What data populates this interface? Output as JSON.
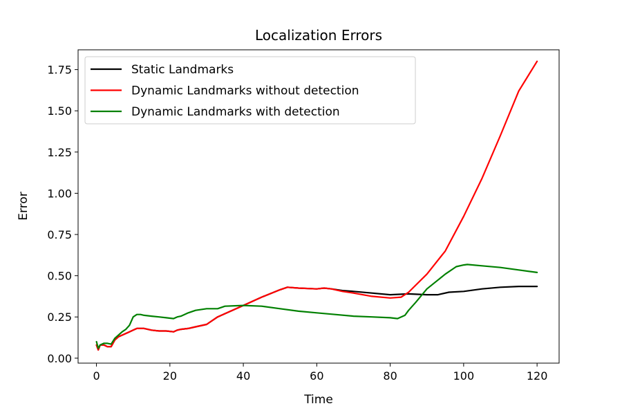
{
  "chart_data": {
    "type": "line",
    "title": "Localization Errors",
    "xlabel": "Time",
    "ylabel": "Error",
    "xlim": [
      -5,
      126
    ],
    "ylim": [
      -0.03,
      1.87
    ],
    "xticks": [
      0,
      20,
      40,
      60,
      80,
      100,
      120
    ],
    "xtick_labels": [
      "0",
      "20",
      "40",
      "60",
      "80",
      "100",
      "120"
    ],
    "yticks": [
      0.0,
      0.25,
      0.5,
      0.75,
      1.0,
      1.25,
      1.5,
      1.75
    ],
    "ytick_labels": [
      "0.00",
      "0.25",
      "0.50",
      "0.75",
      "1.00",
      "1.25",
      "1.50",
      "1.75"
    ],
    "grid": false,
    "legend_position": "upper-left",
    "series": [
      {
        "name": "Static Landmarks",
        "color": "#000000",
        "x": [
          0,
          0.5,
          1,
          2,
          3,
          4,
          5,
          6,
          7,
          8,
          9,
          10,
          11,
          12,
          13,
          15,
          17,
          19,
          21,
          22,
          23,
          25,
          27,
          30,
          31,
          33,
          35,
          40,
          45,
          50,
          52,
          55,
          60,
          62,
          64,
          67,
          70,
          75,
          80,
          85,
          90,
          93,
          96,
          100,
          105,
          110,
          115,
          120
        ],
        "y": [
          0.08,
          0.05,
          0.08,
          0.08,
          0.07,
          0.07,
          0.11,
          0.13,
          0.14,
          0.15,
          0.16,
          0.17,
          0.18,
          0.18,
          0.18,
          0.17,
          0.165,
          0.165,
          0.16,
          0.17,
          0.175,
          0.18,
          0.19,
          0.205,
          0.22,
          0.25,
          0.27,
          0.32,
          0.37,
          0.415,
          0.43,
          0.425,
          0.42,
          0.425,
          0.42,
          0.41,
          0.405,
          0.395,
          0.385,
          0.39,
          0.385,
          0.385,
          0.4,
          0.405,
          0.42,
          0.43,
          0.435,
          0.435
        ]
      },
      {
        "name": "Dynamic Landmarks without detection",
        "color": "#ff0000",
        "x": [
          0,
          0.5,
          1,
          2,
          3,
          4,
          5,
          6,
          7,
          8,
          9,
          10,
          11,
          12,
          13,
          15,
          17,
          19,
          21,
          22,
          23,
          25,
          27,
          30,
          31,
          33,
          35,
          40,
          45,
          50,
          52,
          55,
          60,
          62,
          64,
          67,
          70,
          75,
          80,
          83,
          85,
          90,
          95,
          100,
          105,
          110,
          115,
          120
        ],
        "y": [
          0.08,
          0.05,
          0.08,
          0.08,
          0.07,
          0.07,
          0.11,
          0.13,
          0.14,
          0.15,
          0.16,
          0.17,
          0.18,
          0.18,
          0.18,
          0.17,
          0.165,
          0.165,
          0.16,
          0.17,
          0.175,
          0.18,
          0.19,
          0.205,
          0.22,
          0.25,
          0.27,
          0.32,
          0.37,
          0.415,
          0.43,
          0.425,
          0.42,
          0.425,
          0.42,
          0.405,
          0.395,
          0.375,
          0.365,
          0.37,
          0.4,
          0.51,
          0.65,
          0.86,
          1.09,
          1.35,
          1.62,
          1.8
        ]
      },
      {
        "name": "Dynamic Landmarks with detection",
        "color": "#008000",
        "x": [
          0,
          0.5,
          1,
          2,
          3,
          4,
          5,
          6,
          7,
          8,
          9,
          10,
          11,
          12,
          13,
          15,
          17,
          19,
          21,
          22,
          23,
          25,
          27,
          30,
          31,
          33,
          35,
          40,
          45,
          50,
          55,
          60,
          65,
          70,
          75,
          80,
          82,
          84,
          85,
          87,
          90,
          95,
          98,
          100,
          101,
          105,
          110,
          115,
          120
        ],
        "y": [
          0.1,
          0.06,
          0.08,
          0.09,
          0.09,
          0.085,
          0.12,
          0.14,
          0.16,
          0.175,
          0.2,
          0.25,
          0.265,
          0.265,
          0.26,
          0.255,
          0.25,
          0.245,
          0.24,
          0.25,
          0.255,
          0.275,
          0.29,
          0.3,
          0.3,
          0.3,
          0.315,
          0.32,
          0.315,
          0.3,
          0.285,
          0.275,
          0.265,
          0.255,
          0.25,
          0.245,
          0.24,
          0.26,
          0.29,
          0.34,
          0.42,
          0.51,
          0.555,
          0.565,
          0.568,
          0.56,
          0.55,
          0.535,
          0.52
        ]
      }
    ]
  }
}
